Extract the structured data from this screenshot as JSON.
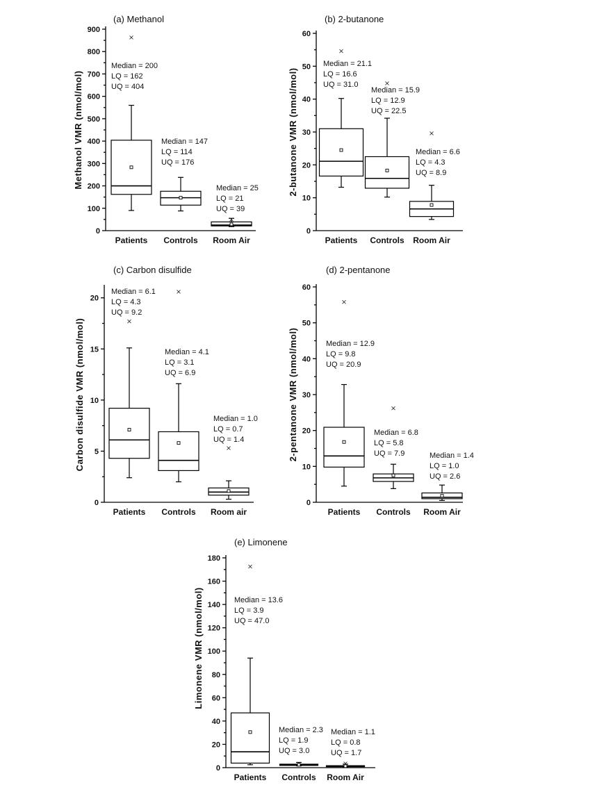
{
  "chart_data": [
    {
      "type": "box",
      "title": "(a) Methanol",
      "ylabel": "Methanol VMR (nmol/mol)",
      "ylim": [
        0,
        900
      ],
      "yticks": [
        0,
        100,
        200,
        300,
        400,
        500,
        600,
        700,
        800,
        900
      ],
      "categories": [
        "Patients",
        "Controls",
        "Room Air"
      ],
      "boxes": [
        {
          "category": "Patients",
          "min": 90,
          "q1": 162,
          "median": 200,
          "q3": 404,
          "max": 560,
          "mean": 283,
          "outliers": [
            863
          ]
        },
        {
          "category": "Controls",
          "min": 88,
          "q1": 114,
          "median": 147,
          "q3": 176,
          "max": 238,
          "mean": 147,
          "outliers": []
        },
        {
          "category": "Room Air",
          "min": 18,
          "q1": 21,
          "median": 25,
          "q3": 39,
          "max": 55,
          "mean": 28,
          "outliers": [
            50
          ]
        }
      ],
      "annotations": [
        [
          "Median = 200",
          "LQ = 162",
          "UQ = 404"
        ],
        [
          "Median = 147",
          "LQ = 114",
          "UQ = 176"
        ],
        [
          "Median = 25",
          "LQ = 21",
          "UQ = 39"
        ]
      ]
    },
    {
      "type": "box",
      "title": "(b) 2-butanone",
      "ylabel": "2-butanone VMR (nmol/mol)",
      "ylim": [
        0,
        60
      ],
      "yticks": [
        0,
        10,
        20,
        30,
        40,
        50,
        60
      ],
      "categories": [
        "Patients",
        "Controls",
        "Room Air"
      ],
      "boxes": [
        {
          "category": "Patients",
          "min": 13.2,
          "q1": 16.6,
          "median": 21.1,
          "q3": 31.0,
          "max": 40.2,
          "mean": 24.5,
          "outliers": [
            54.6
          ]
        },
        {
          "category": "Controls",
          "min": 10.2,
          "q1": 12.9,
          "median": 15.9,
          "q3": 22.5,
          "max": 34.2,
          "mean": 18.3,
          "outliers": [
            44.8
          ]
        },
        {
          "category": "Room Air",
          "min": 3.4,
          "q1": 4.3,
          "median": 6.6,
          "q3": 8.9,
          "max": 13.8,
          "mean": 7.8,
          "outliers": [
            29.6
          ]
        }
      ],
      "annotations": [
        [
          "Median = 21.1",
          "LQ = 16.6",
          "UQ = 31.0"
        ],
        [
          "Median = 15.9",
          "LQ = 12.9",
          "UQ = 22.5"
        ],
        [
          "Median = 6.6",
          "LQ = 4.3",
          "UQ = 8.9"
        ]
      ]
    },
    {
      "type": "box",
      "title": "(c) Carbon disulfide",
      "ylabel": "Carbon disulfide VMR (nmol/mol)",
      "ylim": [
        0,
        21
      ],
      "yticks": [
        0,
        5,
        10,
        15,
        20
      ],
      "categories": [
        "Patients",
        "Controls",
        "Room air"
      ],
      "boxes": [
        {
          "category": "Patients",
          "min": 2.4,
          "q1": 4.3,
          "median": 6.1,
          "q3": 9.2,
          "max": 15.1,
          "mean": 7.1,
          "outliers": [
            17.7
          ]
        },
        {
          "category": "Controls",
          "min": 2.0,
          "q1": 3.1,
          "median": 4.1,
          "q3": 6.9,
          "max": 11.6,
          "mean": 5.8,
          "outliers": [
            20.6
          ]
        },
        {
          "category": "Room air",
          "min": 0.3,
          "q1": 0.7,
          "median": 1.0,
          "q3": 1.4,
          "max": 2.1,
          "mean": 1.1,
          "outliers": [
            5.3
          ]
        }
      ],
      "annotations": [
        [
          "Median = 6.1",
          "LQ = 4.3",
          "UQ = 9.2"
        ],
        [
          "Median = 4.1",
          "LQ = 3.1",
          "UQ = 6.9"
        ],
        [
          "Median = 1.0",
          "LQ = 0.7",
          "UQ = 1.4"
        ]
      ]
    },
    {
      "type": "box",
      "title": "(d) 2-pentanone",
      "ylabel": "2-pentanone VMR (nmol/mol)",
      "ylim": [
        0,
        60
      ],
      "yticks": [
        0,
        10,
        20,
        30,
        40,
        50,
        60
      ],
      "categories": [
        "Patients",
        "Controls",
        "Room Air"
      ],
      "boxes": [
        {
          "category": "Patients",
          "min": 4.5,
          "q1": 9.8,
          "median": 12.9,
          "q3": 20.9,
          "max": 32.8,
          "mean": 16.8,
          "outliers": [
            55.8
          ]
        },
        {
          "category": "Controls",
          "min": 3.8,
          "q1": 5.8,
          "median": 6.8,
          "q3": 7.9,
          "max": 10.6,
          "mean": 7.5,
          "outliers": [
            26.2
          ]
        },
        {
          "category": "Room Air",
          "min": 0.5,
          "q1": 1.0,
          "median": 1.4,
          "q3": 2.6,
          "max": 4.8,
          "mean": 1.8,
          "outliers": []
        }
      ],
      "annotations": [
        [
          "Median = 12.9",
          "LQ = 9.8",
          "UQ = 20.9"
        ],
        [
          "Median = 6.8",
          "LQ = 5.8",
          "UQ = 7.9"
        ],
        [
          "Median = 1.4",
          "LQ = 1.0",
          "UQ = 2.6"
        ]
      ]
    },
    {
      "type": "box",
      "title": "(e) Limonene",
      "ylabel": "Limonene VMR (nmol/mol)",
      "ylim": [
        0,
        180
      ],
      "yticks": [
        0,
        20,
        40,
        60,
        80,
        100,
        120,
        140,
        160,
        180
      ],
      "categories": [
        "Patients",
        "Controls",
        "Room Air"
      ],
      "boxes": [
        {
          "category": "Patients",
          "min": 2.5,
          "q1": 3.9,
          "median": 13.6,
          "q3": 47.0,
          "max": 94.0,
          "mean": 30.5,
          "outliers": [
            172.5
          ]
        },
        {
          "category": "Controls",
          "min": 1.5,
          "q1": 1.9,
          "median": 2.3,
          "q3": 3.0,
          "max": 4.5,
          "mean": 2.5,
          "outliers": []
        },
        {
          "category": "Room Air",
          "min": 0.5,
          "q1": 0.8,
          "median": 1.1,
          "q3": 1.7,
          "max": 3.0,
          "mean": 1.3,
          "outliers": [
            3.5
          ]
        }
      ],
      "annotations": [
        [
          "Median = 13.6",
          "LQ = 3.9",
          "UQ = 47.0"
        ],
        [
          "Median = 2.3",
          "LQ = 1.9",
          "UQ = 3.0"
        ],
        [
          "Median = 1.1",
          "LQ = 0.8",
          "UQ = 1.7"
        ]
      ]
    }
  ]
}
